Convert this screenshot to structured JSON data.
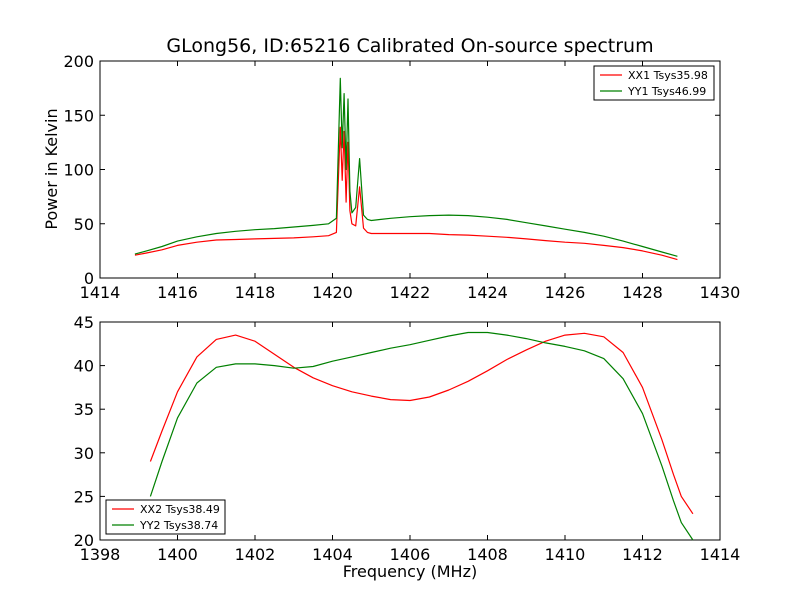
{
  "chart_data": [
    {
      "type": "line",
      "title": "GLong56, ID:65216 Calibrated On-source spectrum",
      "xlabel": "",
      "ylabel": "Power in Kelvin",
      "xlim": [
        1414,
        1430
      ],
      "ylim": [
        0,
        200
      ],
      "xticks": [
        1414,
        1416,
        1418,
        1420,
        1422,
        1424,
        1426,
        1428,
        1430
      ],
      "yticks": [
        0,
        50,
        100,
        150,
        200
      ],
      "grid": false,
      "legend_position": "top-right",
      "series": [
        {
          "name": "XX1 Tsys35.98",
          "color": "#ff0000",
          "points": [
            [
              1414.9,
              21
            ],
            [
              1415.2,
              23
            ],
            [
              1415.6,
              26
            ],
            [
              1416.0,
              30
            ],
            [
              1416.5,
              33
            ],
            [
              1417.0,
              35
            ],
            [
              1417.5,
              35.5
            ],
            [
              1418.0,
              36
            ],
            [
              1418.5,
              36.5
            ],
            [
              1419.0,
              37
            ],
            [
              1419.5,
              38
            ],
            [
              1419.9,
              39
            ],
            [
              1420.1,
              42
            ],
            [
              1420.2,
              139
            ],
            [
              1420.25,
              90
            ],
            [
              1420.3,
              135
            ],
            [
              1420.35,
              70
            ],
            [
              1420.4,
              125
            ],
            [
              1420.45,
              62
            ],
            [
              1420.5,
              50
            ],
            [
              1420.6,
              48
            ],
            [
              1420.7,
              84
            ],
            [
              1420.8,
              46
            ],
            [
              1420.9,
              42
            ],
            [
              1421.0,
              41
            ],
            [
              1421.5,
              41
            ],
            [
              1422.0,
              41
            ],
            [
              1422.5,
              41
            ],
            [
              1423.0,
              40
            ],
            [
              1423.5,
              39.5
            ],
            [
              1424.0,
              38.5
            ],
            [
              1424.5,
              37.5
            ],
            [
              1425.0,
              36
            ],
            [
              1425.5,
              34.5
            ],
            [
              1426.0,
              33
            ],
            [
              1426.5,
              32
            ],
            [
              1427.0,
              30
            ],
            [
              1427.5,
              28
            ],
            [
              1428.0,
              25
            ],
            [
              1428.5,
              21
            ],
            [
              1428.9,
              17
            ]
          ]
        },
        {
          "name": "YY1 Tsys46.99",
          "color": "#008000",
          "points": [
            [
              1414.9,
              22
            ],
            [
              1415.2,
              25
            ],
            [
              1415.6,
              29
            ],
            [
              1416.0,
              34
            ],
            [
              1416.5,
              38
            ],
            [
              1417.0,
              41
            ],
            [
              1417.5,
              43
            ],
            [
              1418.0,
              44.5
            ],
            [
              1418.5,
              45.5
            ],
            [
              1419.0,
              47
            ],
            [
              1419.5,
              48.5
            ],
            [
              1419.9,
              50
            ],
            [
              1420.1,
              55
            ],
            [
              1420.2,
              184
            ],
            [
              1420.25,
              120
            ],
            [
              1420.3,
              170
            ],
            [
              1420.35,
              100
            ],
            [
              1420.4,
              165
            ],
            [
              1420.45,
              80
            ],
            [
              1420.5,
              60
            ],
            [
              1420.6,
              65
            ],
            [
              1420.7,
              110
            ],
            [
              1420.8,
              58
            ],
            [
              1420.9,
              54
            ],
            [
              1421.0,
              53
            ],
            [
              1421.5,
              55
            ],
            [
              1422.0,
              56.5
            ],
            [
              1422.5,
              57.5
            ],
            [
              1423.0,
              58
            ],
            [
              1423.5,
              57.5
            ],
            [
              1424.0,
              56
            ],
            [
              1424.5,
              54
            ],
            [
              1425.0,
              51
            ],
            [
              1425.5,
              48
            ],
            [
              1426.0,
              45
            ],
            [
              1426.5,
              42
            ],
            [
              1427.0,
              38.5
            ],
            [
              1427.5,
              34
            ],
            [
              1428.0,
              29
            ],
            [
              1428.5,
              24
            ],
            [
              1428.9,
              20
            ]
          ]
        }
      ]
    },
    {
      "type": "line",
      "title": "",
      "xlabel": "Frequency (MHz)",
      "ylabel": "",
      "xlim": [
        1398,
        1414
      ],
      "ylim": [
        20,
        45
      ],
      "xticks": [
        1398,
        1400,
        1402,
        1404,
        1406,
        1408,
        1410,
        1412,
        1414
      ],
      "yticks": [
        20,
        25,
        30,
        35,
        40,
        45
      ],
      "grid": false,
      "legend_position": "bottom-left",
      "series": [
        {
          "name": "XX2 Tsys38.49",
          "color": "#ff0000",
          "points": [
            [
              1399.3,
              29
            ],
            [
              1399.6,
              32.5
            ],
            [
              1400.0,
              37
            ],
            [
              1400.5,
              41
            ],
            [
              1401.0,
              43
            ],
            [
              1401.5,
              43.5
            ],
            [
              1402.0,
              42.8
            ],
            [
              1402.5,
              41.3
            ],
            [
              1403.0,
              39.8
            ],
            [
              1403.5,
              38.6
            ],
            [
              1404.0,
              37.7
            ],
            [
              1404.5,
              37
            ],
            [
              1405.0,
              36.5
            ],
            [
              1405.5,
              36.1
            ],
            [
              1406.0,
              36
            ],
            [
              1406.5,
              36.4
            ],
            [
              1407.0,
              37.2
            ],
            [
              1407.5,
              38.2
            ],
            [
              1408.0,
              39.4
            ],
            [
              1408.5,
              40.7
            ],
            [
              1409.0,
              41.8
            ],
            [
              1409.5,
              42.8
            ],
            [
              1410.0,
              43.5
            ],
            [
              1410.5,
              43.7
            ],
            [
              1411.0,
              43.3
            ],
            [
              1411.5,
              41.5
            ],
            [
              1412.0,
              37.5
            ],
            [
              1412.5,
              31.5
            ],
            [
              1412.8,
              27.5
            ],
            [
              1413.0,
              25
            ],
            [
              1413.3,
              23
            ]
          ]
        },
        {
          "name": "YY2 Tsys38.74",
          "color": "#008000",
          "points": [
            [
              1399.3,
              25
            ],
            [
              1399.6,
              29
            ],
            [
              1400.0,
              34
            ],
            [
              1400.5,
              38
            ],
            [
              1401.0,
              39.8
            ],
            [
              1401.5,
              40.2
            ],
            [
              1402.0,
              40.2
            ],
            [
              1402.5,
              40
            ],
            [
              1403.0,
              39.7
            ],
            [
              1403.5,
              39.9
            ],
            [
              1404.0,
              40.5
            ],
            [
              1404.5,
              41
            ],
            [
              1405.0,
              41.5
            ],
            [
              1405.5,
              42
            ],
            [
              1406.0,
              42.4
            ],
            [
              1406.5,
              42.9
            ],
            [
              1407.0,
              43.4
            ],
            [
              1407.5,
              43.8
            ],
            [
              1408.0,
              43.8
            ],
            [
              1408.5,
              43.5
            ],
            [
              1409.0,
              43.1
            ],
            [
              1409.5,
              42.6
            ],
            [
              1410.0,
              42.2
            ],
            [
              1410.5,
              41.7
            ],
            [
              1411.0,
              40.8
            ],
            [
              1411.5,
              38.5
            ],
            [
              1412.0,
              34.5
            ],
            [
              1412.5,
              28.5
            ],
            [
              1412.8,
              24.5
            ],
            [
              1413.0,
              22
            ],
            [
              1413.3,
              20
            ]
          ]
        }
      ]
    }
  ]
}
